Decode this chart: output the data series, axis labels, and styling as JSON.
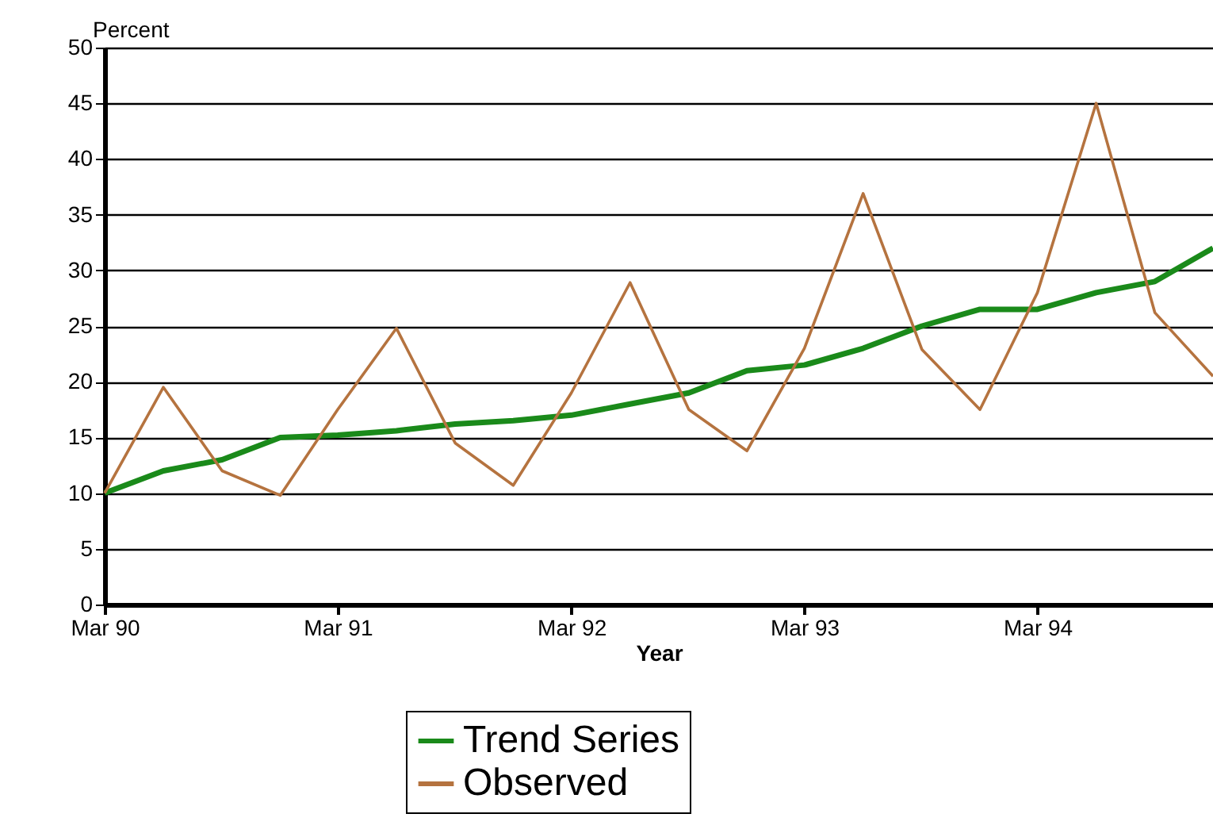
{
  "chart_data": {
    "type": "line",
    "xlabel": "Year",
    "ylabel": "Percent",
    "x": [
      "1990-03",
      "1990-06",
      "1990-09",
      "1990-12",
      "1991-03",
      "1991-06",
      "1991-09",
      "1991-12",
      "1992-03",
      "1992-06",
      "1992-09",
      "1992-12",
      "1993-03",
      "1993-06",
      "1993-09",
      "1993-12",
      "1994-03",
      "1994-06",
      "1994-09",
      "1994-12"
    ],
    "series": [
      {
        "name": "Trend Series",
        "color": "#1a8a1a",
        "values": [
          10,
          12,
          13,
          15,
          15.2,
          15.6,
          16.2,
          16.5,
          17,
          18,
          19,
          21,
          21.5,
          23,
          25,
          26.5,
          26.5,
          28,
          29,
          32
        ]
      },
      {
        "name": "Observed",
        "color": "#b5733f",
        "values": [
          10,
          19.5,
          12,
          9.8,
          17.5,
          24.8,
          14.5,
          10.7,
          19,
          28.9,
          17.5,
          13.8,
          23,
          36.9,
          22.9,
          17.5,
          28,
          45,
          26.2,
          20.5
        ]
      }
    ],
    "xlim": [
      "1990-03",
      "1994-12"
    ],
    "xticks": [
      {
        "value": "1990-03",
        "label": "Mar 90"
      },
      {
        "value": "1991-03",
        "label": "Mar 91"
      },
      {
        "value": "1992-03",
        "label": "Mar 92"
      },
      {
        "value": "1993-03",
        "label": "Mar 93"
      },
      {
        "value": "1994-03",
        "label": "Mar 94"
      }
    ],
    "ylim": [
      0,
      50
    ],
    "yticks": [
      0,
      5,
      10,
      15,
      20,
      25,
      30,
      35,
      40,
      45,
      50
    ],
    "grid": "y",
    "legend": "bottom",
    "marker": "none",
    "line_style": "solid"
  }
}
